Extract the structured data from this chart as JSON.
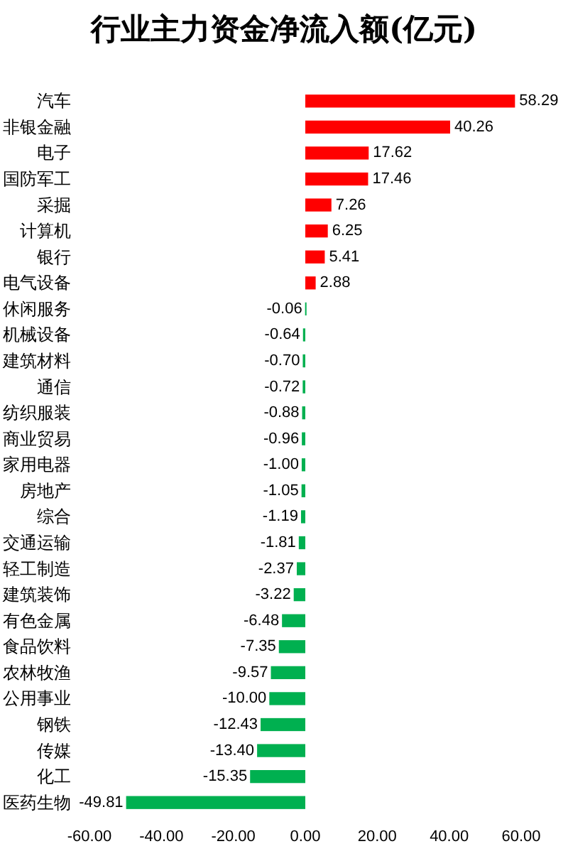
{
  "chart_data": {
    "type": "bar",
    "orientation": "horizontal",
    "title": "行业主力资金净流入额(亿元)",
    "categories": [
      "汽车",
      "非银金融",
      "电子",
      "国防军工",
      "采掘",
      "计算机",
      "银行",
      "电气设备",
      "休闲服务",
      "机械设备",
      "建筑材料",
      "通信",
      "纺织服装",
      "商业贸易",
      "家用电器",
      "房地产",
      "综合",
      "交通运输",
      "轻工制造",
      "建筑装饰",
      "有色金属",
      "食品饮料",
      "农林牧渔",
      "公用事业",
      "钢铁",
      "传媒",
      "化工",
      "医药生物"
    ],
    "values": [
      58.29,
      40.26,
      17.62,
      17.46,
      7.26,
      6.25,
      5.41,
      2.88,
      -0.06,
      -0.64,
      -0.7,
      -0.72,
      -0.88,
      -0.96,
      -1.0,
      -1.05,
      -1.19,
      -1.81,
      -2.37,
      -3.22,
      -6.48,
      -7.35,
      -9.57,
      -10.0,
      -12.43,
      -13.4,
      -15.35,
      -49.81
    ],
    "value_labels": [
      "58.29",
      "40.26",
      "17.62",
      "17.46",
      "7.26",
      "6.25",
      "5.41",
      "2.88",
      "-0.06",
      "-0.64",
      "-0.70",
      "-0.72",
      "-0.88",
      "-0.96",
      "-1.00",
      "-1.05",
      "-1.19",
      "-1.81",
      "-2.37",
      "-3.22",
      "-6.48",
      "-7.35",
      "-9.57",
      "-10.00",
      "-12.43",
      "-13.40",
      "-15.35",
      "-49.81"
    ],
    "colors": [
      "#ff0000",
      "#ff0000",
      "#ff0000",
      "#ff0000",
      "#ff0000",
      "#ff0000",
      "#ff0000",
      "#ff0000",
      "#00b050",
      "#00b050",
      "#00b050",
      "#00b050",
      "#00b050",
      "#00b050",
      "#00b050",
      "#00b050",
      "#00b050",
      "#00b050",
      "#00b050",
      "#00b050",
      "#00b050",
      "#00b050",
      "#00b050",
      "#00b050",
      "#00b050",
      "#00b050",
      "#00b050",
      "#00b050"
    ],
    "xlim": [
      -60,
      60
    ],
    "xticks": [
      {
        "value": -60,
        "label": "-60.00"
      },
      {
        "value": -40,
        "label": "-40.00"
      },
      {
        "value": -20,
        "label": "-20.00"
      },
      {
        "value": 0,
        "label": "0.00"
      },
      {
        "value": 20,
        "label": "20.00"
      },
      {
        "value": 40,
        "label": "40.00"
      },
      {
        "value": 60,
        "label": "60.00"
      }
    ],
    "grid": false
  }
}
